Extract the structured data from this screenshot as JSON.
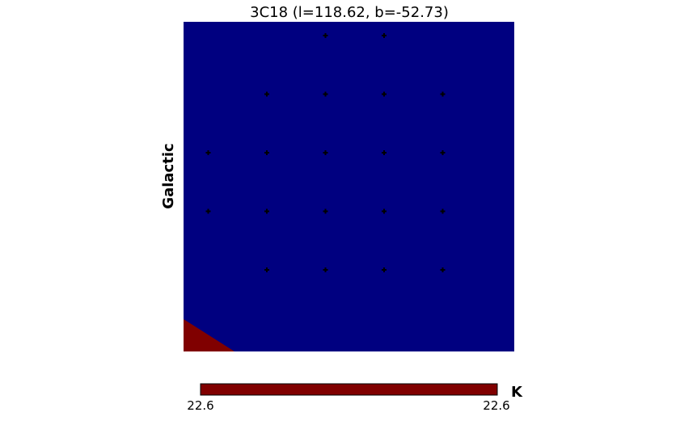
{
  "chart_data": {
    "type": "heatmap",
    "title": "3C18 (l=118.62, b=-52.73)",
    "ylabel": "Galactic",
    "projection": "Galactic",
    "grid": false,
    "map_colors": {
      "background": "#000080",
      "corner_patch": "#800000"
    },
    "markers": {
      "symbol": "+",
      "color": "#000000",
      "rows": [
        {
          "columns": [
            3,
            4
          ]
        },
        {
          "columns": [
            2,
            3,
            4,
            5
          ]
        },
        {
          "columns": [
            1,
            2,
            3,
            4,
            5
          ]
        },
        {
          "columns": [
            1,
            2,
            3,
            4,
            5
          ]
        },
        {
          "columns": [
            2,
            3,
            4,
            5
          ]
        }
      ]
    },
    "colorbar": {
      "orientation": "horizontal",
      "color": "#800000",
      "min_label": "22.6",
      "max_label": "22.6",
      "unit": "K"
    }
  }
}
